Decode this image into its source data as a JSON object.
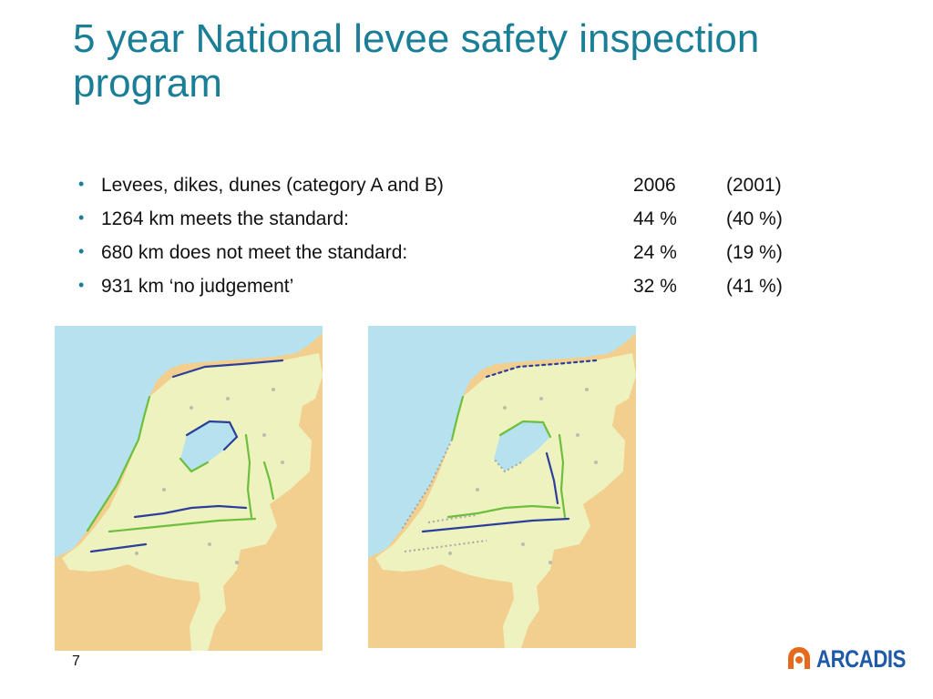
{
  "slide": {
    "title": "5 year National levee safety inspection program",
    "page_number": "7",
    "logo_text": "ARCADIS"
  },
  "bullets": [
    {
      "label": "Levees, dikes, dunes (category A and B)",
      "current": "2006",
      "previous": "(2001)"
    },
    {
      "label": "1264 km meets the standard:",
      "current": "44 %",
      "previous": "(40 %)"
    },
    {
      "label": "680 km does not meet the standard:",
      "current": "24 %",
      "previous": "(19 %)"
    },
    {
      "label": "931 km ‘no judgement’",
      "current": "32 %",
      "previous": "(41 %)"
    }
  ],
  "colors": {
    "title": "#1a7f96",
    "sea": "#b6e2ef",
    "land": "#eef2bf",
    "neighbor_land": "#f2cf8e",
    "levee_meets": "#6cbf3c",
    "levee_fails": "#2b3f9a",
    "no_judgement": "#a6a6a6",
    "logo_blue": "#1e5aa8",
    "logo_orange": "#e66a1e"
  },
  "maps": [
    {
      "name": "levee-map-2001"
    },
    {
      "name": "levee-map-2006"
    }
  ]
}
